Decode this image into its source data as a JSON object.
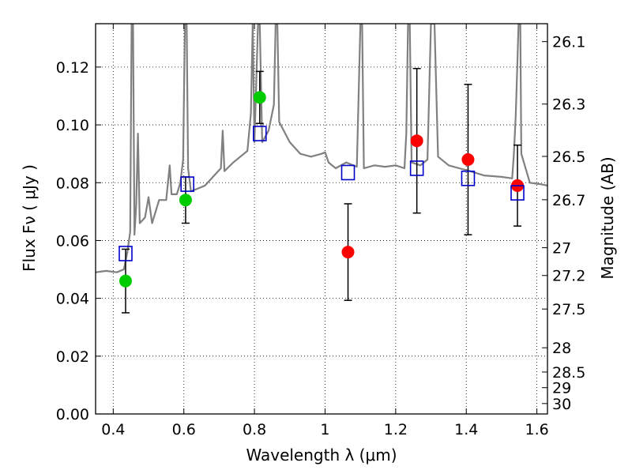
{
  "chart_data": {
    "type": "scatter",
    "xlabel": "Wavelength  λ (μm)",
    "ylabel": "Flux  Fν  ( μJy )",
    "y2label": "Magnitude (AB)",
    "xlim": [
      0.35,
      1.63
    ],
    "ylim": [
      0.0,
      0.135
    ],
    "grid": true,
    "x_ticks": [
      {
        "value": 0.4,
        "label": "0.4"
      },
      {
        "value": 0.6,
        "label": "0.6"
      },
      {
        "value": 0.8,
        "label": "0.8"
      },
      {
        "value": 1.0,
        "label": "1"
      },
      {
        "value": 1.2,
        "label": "1.2"
      },
      {
        "value": 1.4,
        "label": "1.4"
      },
      {
        "value": 1.6,
        "label": "1.6"
      }
    ],
    "y_ticks": [
      {
        "value": 0.0,
        "label": "0.00"
      },
      {
        "value": 0.02,
        "label": "0.02"
      },
      {
        "value": 0.04,
        "label": "0.04"
      },
      {
        "value": 0.06,
        "label": "0.06"
      },
      {
        "value": 0.08,
        "label": "0.08"
      },
      {
        "value": 0.1,
        "label": "0.10"
      },
      {
        "value": 0.12,
        "label": "0.12"
      }
    ],
    "mag_ticks": [
      {
        "flux": 0.1288,
        "label": "26.1"
      },
      {
        "flux": 0.1072,
        "label": "26.3"
      },
      {
        "flux": 0.0891,
        "label": "26.5"
      },
      {
        "flux": 0.0741,
        "label": "26.7"
      },
      {
        "flux": 0.0575,
        "label": "27"
      },
      {
        "flux": 0.0479,
        "label": "27.2"
      },
      {
        "flux": 0.0363,
        "label": "27.5"
      },
      {
        "flux": 0.0229,
        "label": "28"
      },
      {
        "flux": 0.0145,
        "label": "28.5"
      },
      {
        "flux": 0.0091,
        "label": "29"
      },
      {
        "flux": 0.0036,
        "label": "30"
      }
    ],
    "series": [
      {
        "color": "#808080",
        "style": "line",
        "points": [
          [
            0.35,
            0.049
          ],
          [
            0.38,
            0.0495
          ],
          [
            0.41,
            0.049
          ],
          [
            0.43,
            0.05
          ],
          [
            0.44,
            0.056
          ],
          [
            0.448,
            0.063
          ],
          [
            0.452,
            0.135
          ],
          [
            0.456,
            0.135
          ],
          [
            0.46,
            0.062
          ],
          [
            0.465,
            0.072
          ],
          [
            0.47,
            0.097
          ],
          [
            0.475,
            0.066
          ],
          [
            0.49,
            0.068
          ],
          [
            0.5,
            0.075
          ],
          [
            0.51,
            0.066
          ],
          [
            0.53,
            0.074
          ],
          [
            0.55,
            0.074
          ],
          [
            0.56,
            0.086
          ],
          [
            0.565,
            0.076
          ],
          [
            0.58,
            0.076
          ],
          [
            0.59,
            0.08
          ],
          [
            0.598,
            0.088
          ],
          [
            0.603,
            0.135
          ],
          [
            0.608,
            0.135
          ],
          [
            0.612,
            0.085
          ],
          [
            0.62,
            0.077
          ],
          [
            0.64,
            0.078
          ],
          [
            0.66,
            0.079
          ],
          [
            0.69,
            0.083
          ],
          [
            0.705,
            0.085
          ],
          [
            0.71,
            0.098
          ],
          [
            0.715,
            0.084
          ],
          [
            0.74,
            0.087
          ],
          [
            0.76,
            0.089
          ],
          [
            0.78,
            0.091
          ],
          [
            0.79,
            0.104
          ],
          [
            0.795,
            0.135
          ],
          [
            0.8,
            0.094
          ],
          [
            0.81,
            0.135
          ],
          [
            0.815,
            0.135
          ],
          [
            0.822,
            0.094
          ],
          [
            0.84,
            0.098
          ],
          [
            0.855,
            0.107
          ],
          [
            0.86,
            0.135
          ],
          [
            0.865,
            0.135
          ],
          [
            0.87,
            0.101
          ],
          [
            0.9,
            0.094
          ],
          [
            0.93,
            0.09
          ],
          [
            0.96,
            0.089
          ],
          [
            0.99,
            0.09
          ],
          [
            1.0,
            0.0905
          ],
          [
            1.01,
            0.087
          ],
          [
            1.03,
            0.085
          ],
          [
            1.06,
            0.087
          ],
          [
            1.09,
            0.0855
          ],
          [
            1.1,
            0.135
          ],
          [
            1.105,
            0.135
          ],
          [
            1.11,
            0.085
          ],
          [
            1.14,
            0.086
          ],
          [
            1.17,
            0.0855
          ],
          [
            1.2,
            0.086
          ],
          [
            1.225,
            0.085
          ],
          [
            1.23,
            0.097
          ],
          [
            1.235,
            0.135
          ],
          [
            1.24,
            0.135
          ],
          [
            1.245,
            0.087
          ],
          [
            1.27,
            0.086
          ],
          [
            1.29,
            0.088
          ],
          [
            1.3,
            0.135
          ],
          [
            1.31,
            0.135
          ],
          [
            1.32,
            0.089
          ],
          [
            1.35,
            0.086
          ],
          [
            1.38,
            0.085
          ],
          [
            1.41,
            0.084
          ],
          [
            1.45,
            0.0825
          ],
          [
            1.5,
            0.082
          ],
          [
            1.53,
            0.0815
          ],
          [
            1.535,
            0.09
          ],
          [
            1.54,
            0.103
          ],
          [
            1.545,
            0.122
          ],
          [
            1.548,
            0.135
          ],
          [
            1.553,
            0.135
          ],
          [
            1.556,
            0.09
          ],
          [
            1.58,
            0.08
          ],
          [
            1.61,
            0.0795
          ],
          [
            1.63,
            0.079
          ]
        ]
      },
      {
        "color": "#00cc00",
        "style": "marker-circle",
        "points": [
          {
            "x": 0.435,
            "y": 0.046,
            "err": 0.011
          },
          {
            "x": 0.605,
            "y": 0.074,
            "err": 0.008
          },
          {
            "x": 0.815,
            "y": 0.1095,
            "err": 0.009
          }
        ]
      },
      {
        "color": "#ff0000",
        "style": "marker-circle",
        "points": [
          {
            "x": 1.065,
            "y": 0.056,
            "err": 0.0167
          },
          {
            "x": 1.26,
            "y": 0.0945,
            "err": 0.025
          },
          {
            "x": 1.405,
            "y": 0.088,
            "err": 0.026
          },
          {
            "x": 1.545,
            "y": 0.079,
            "err": 0.014
          }
        ]
      },
      {
        "color": "#0000cc",
        "style": "marker-square",
        "points": [
          {
            "x": 0.435,
            "y": 0.0555
          },
          {
            "x": 0.61,
            "y": 0.0795
          },
          {
            "x": 0.815,
            "y": 0.097
          },
          {
            "x": 1.065,
            "y": 0.0835
          },
          {
            "x": 1.26,
            "y": 0.085
          },
          {
            "x": 1.405,
            "y": 0.0815
          },
          {
            "x": 1.545,
            "y": 0.0765
          }
        ]
      }
    ]
  }
}
